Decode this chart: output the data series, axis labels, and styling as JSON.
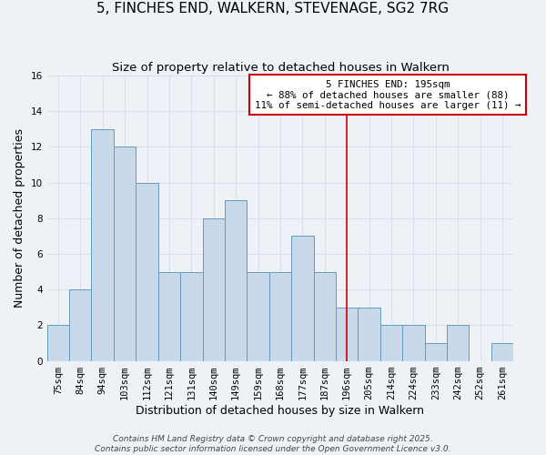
{
  "title": "5, FINCHES END, WALKERN, STEVENAGE, SG2 7RG",
  "subtitle": "Size of property relative to detached houses in Walkern",
  "xlabel": "Distribution of detached houses by size in Walkern",
  "ylabel": "Number of detached properties",
  "bin_labels": [
    "75sqm",
    "84sqm",
    "94sqm",
    "103sqm",
    "112sqm",
    "121sqm",
    "131sqm",
    "140sqm",
    "149sqm",
    "159sqm",
    "168sqm",
    "177sqm",
    "187sqm",
    "196sqm",
    "205sqm",
    "214sqm",
    "224sqm",
    "233sqm",
    "242sqm",
    "252sqm",
    "261sqm"
  ],
  "bar_heights": [
    2,
    4,
    13,
    12,
    10,
    5,
    5,
    8,
    9,
    5,
    5,
    7,
    5,
    3,
    3,
    2,
    2,
    1,
    2,
    0,
    1
  ],
  "bar_color": "#c8daea",
  "bar_edge_color": "#6699bb",
  "ylim": [
    0,
    16
  ],
  "yticks": [
    0,
    2,
    4,
    6,
    8,
    10,
    12,
    14,
    16
  ],
  "vline_x_idx": 13,
  "vline_color": "#cc0000",
  "annotation_title": "5 FINCHES END: 195sqm",
  "annotation_line1": "← 88% of detached houses are smaller (88)",
  "annotation_line2": "11% of semi-detached houses are larger (11) →",
  "footnote1": "Contains HM Land Registry data © Crown copyright and database right 2025.",
  "footnote2": "Contains public sector information licensed under the Open Government Licence v3.0.",
  "bg_color": "#eef2f7",
  "grid_color": "#d8e0ea",
  "title_fontsize": 11,
  "subtitle_fontsize": 9.5,
  "axis_label_fontsize": 9,
  "tick_fontsize": 7.5,
  "footnote_fontsize": 6.5
}
